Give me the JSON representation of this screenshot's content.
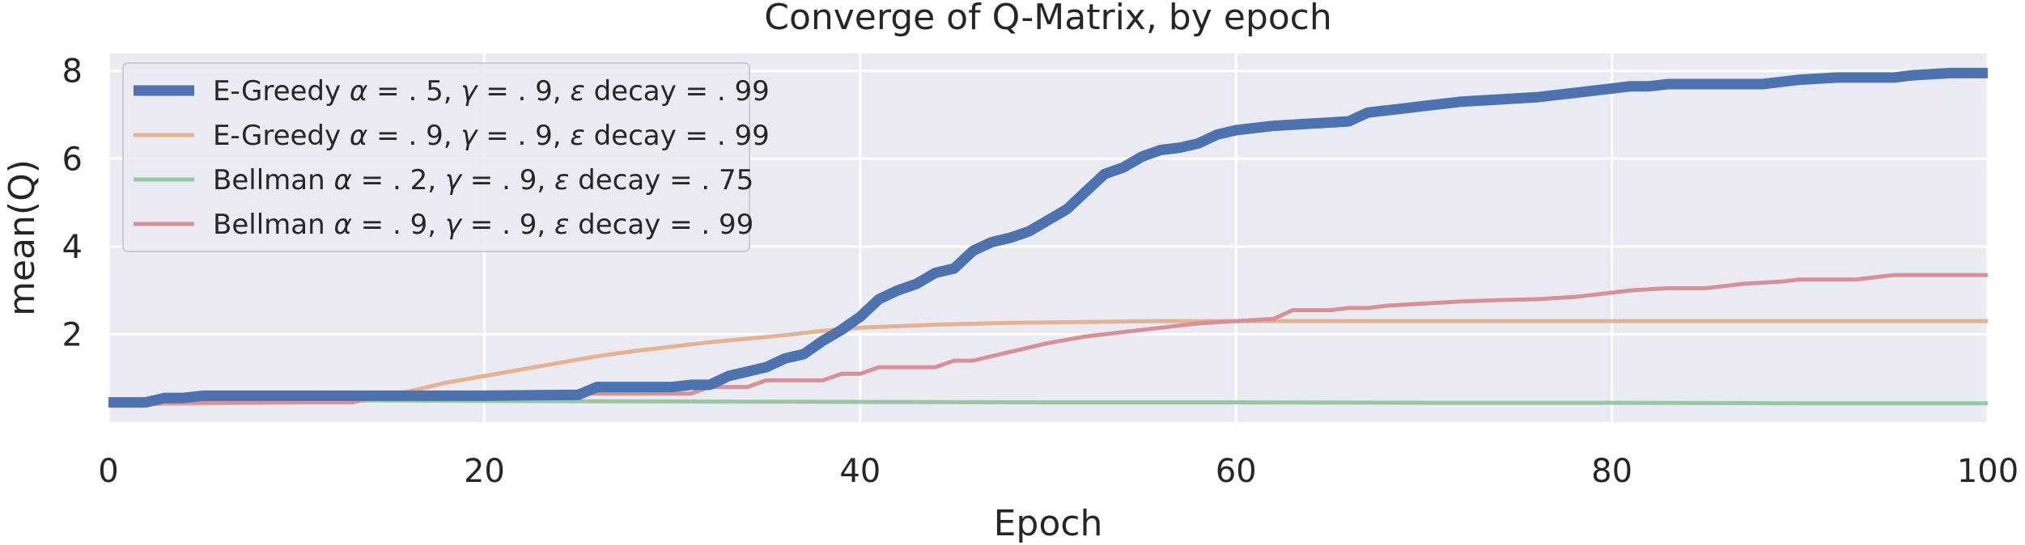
{
  "chart_data": {
    "type": "line",
    "title": "Converge of Q-Matrix, by epoch",
    "xlabel": "Epoch",
    "ylabel": "mean(Q)",
    "xlim": [
      0,
      100
    ],
    "ylim": [
      0,
      8.4
    ],
    "xticks": [
      0,
      20,
      40,
      60,
      80,
      100
    ],
    "xtick_labels": [
      "0",
      "20",
      "40",
      "60",
      "80",
      "100"
    ],
    "yticks": [
      2,
      4,
      6,
      8
    ],
    "ytick_labels": [
      "2",
      "4",
      "6",
      "8"
    ],
    "grid": true,
    "legend_position": "upper-left",
    "background_color": "#eaeaf2",
    "series": [
      {
        "name": "E-Greedy α = .5, γ = .9, ε decay = .99",
        "legend_parts": [
          "E-Greedy ",
          "α",
          " = . 5, ",
          "γ",
          " = . 9, ",
          "ε",
          " decay = . 99"
        ],
        "color": "#4c72b0",
        "width": 13,
        "x": [
          0,
          2,
          3,
          4,
          5,
          6,
          10,
          15,
          20,
          25,
          26,
          30,
          31,
          32,
          33,
          34,
          35,
          36,
          37,
          38,
          39,
          40,
          41,
          42,
          43,
          44,
          45,
          46,
          47,
          48,
          49,
          50,
          51,
          52,
          53,
          54,
          55,
          56,
          57,
          58,
          59,
          60,
          62,
          64,
          66,
          67,
          68,
          69,
          70,
          72,
          74,
          76,
          77,
          78,
          80,
          81,
          82,
          83,
          85,
          88,
          89,
          90,
          92,
          95,
          96,
          98,
          100
        ],
        "y": [
          0.45,
          0.45,
          0.55,
          0.55,
          0.6,
          0.6,
          0.6,
          0.6,
          0.6,
          0.62,
          0.8,
          0.8,
          0.85,
          0.85,
          1.05,
          1.15,
          1.25,
          1.45,
          1.55,
          1.85,
          2.1,
          2.4,
          2.8,
          3.0,
          3.15,
          3.4,
          3.5,
          3.9,
          4.1,
          4.2,
          4.35,
          4.6,
          4.85,
          5.25,
          5.65,
          5.8,
          6.05,
          6.2,
          6.25,
          6.35,
          6.55,
          6.65,
          6.75,
          6.8,
          6.85,
          7.05,
          7.1,
          7.15,
          7.2,
          7.3,
          7.35,
          7.4,
          7.45,
          7.5,
          7.6,
          7.65,
          7.65,
          7.7,
          7.7,
          7.7,
          7.75,
          7.8,
          7.85,
          7.85,
          7.9,
          7.95,
          7.95
        ]
      },
      {
        "name": "E-Greedy α = .9, γ = .9, ε decay = .99",
        "legend_parts": [
          "E-Greedy ",
          "α",
          " = . 9, ",
          "γ",
          " = . 9, ",
          "ε",
          " decay = . 99"
        ],
        "color": "#e6b28f",
        "width": 5,
        "x": [
          0,
          10,
          14,
          16,
          18,
          20,
          22,
          24,
          26,
          28,
          30,
          32,
          34,
          36,
          38,
          40,
          44,
          48,
          52,
          56,
          60,
          70,
          80,
          90,
          100
        ],
        "y": [
          0.4,
          0.45,
          0.5,
          0.7,
          0.9,
          1.05,
          1.2,
          1.35,
          1.5,
          1.62,
          1.72,
          1.82,
          1.9,
          1.98,
          2.08,
          2.15,
          2.22,
          2.26,
          2.28,
          2.3,
          2.3,
          2.3,
          2.3,
          2.3,
          2.3
        ]
      },
      {
        "name": "Bellman α = .2, γ = .9, ε decay = .75",
        "legend_parts": [
          "Bellman ",
          "α",
          " = . 2, ",
          "γ",
          " = . 9, ",
          "ε",
          " decay = . 75"
        ],
        "color": "#98c8a1",
        "width": 5,
        "x": [
          0,
          10,
          20,
          30,
          40,
          50,
          60,
          70,
          80,
          90,
          100
        ],
        "y": [
          0.5,
          0.5,
          0.48,
          0.47,
          0.46,
          0.45,
          0.45,
          0.44,
          0.44,
          0.43,
          0.43
        ]
      },
      {
        "name": "Bellman α = .9, γ = .9, ε decay = .99",
        "legend_parts": [
          "Bellman ",
          "α",
          " = . 9, ",
          "γ",
          " = . 9, ",
          "ε",
          " decay = . 99"
        ],
        "color": "#d98f95",
        "width": 5,
        "x": [
          0,
          13,
          14,
          15,
          24,
          25,
          31,
          32,
          34,
          35,
          38,
          39,
          40,
          41,
          44,
          45,
          46,
          48,
          50,
          52,
          54,
          56,
          58,
          60,
          62,
          63,
          65,
          66,
          67,
          68,
          70,
          72,
          74,
          76,
          78,
          80,
          81,
          83,
          85,
          86,
          87,
          89,
          90,
          93,
          94,
          95,
          100
        ],
        "y": [
          0.45,
          0.45,
          0.55,
          0.6,
          0.6,
          0.65,
          0.65,
          0.8,
          0.8,
          0.95,
          0.95,
          1.1,
          1.1,
          1.25,
          1.25,
          1.4,
          1.4,
          1.6,
          1.8,
          1.95,
          2.05,
          2.15,
          2.25,
          2.3,
          2.35,
          2.55,
          2.55,
          2.6,
          2.6,
          2.65,
          2.7,
          2.75,
          2.78,
          2.8,
          2.85,
          2.95,
          3.0,
          3.05,
          3.05,
          3.1,
          3.15,
          3.2,
          3.25,
          3.25,
          3.3,
          3.35,
          3.35
        ]
      }
    ]
  }
}
